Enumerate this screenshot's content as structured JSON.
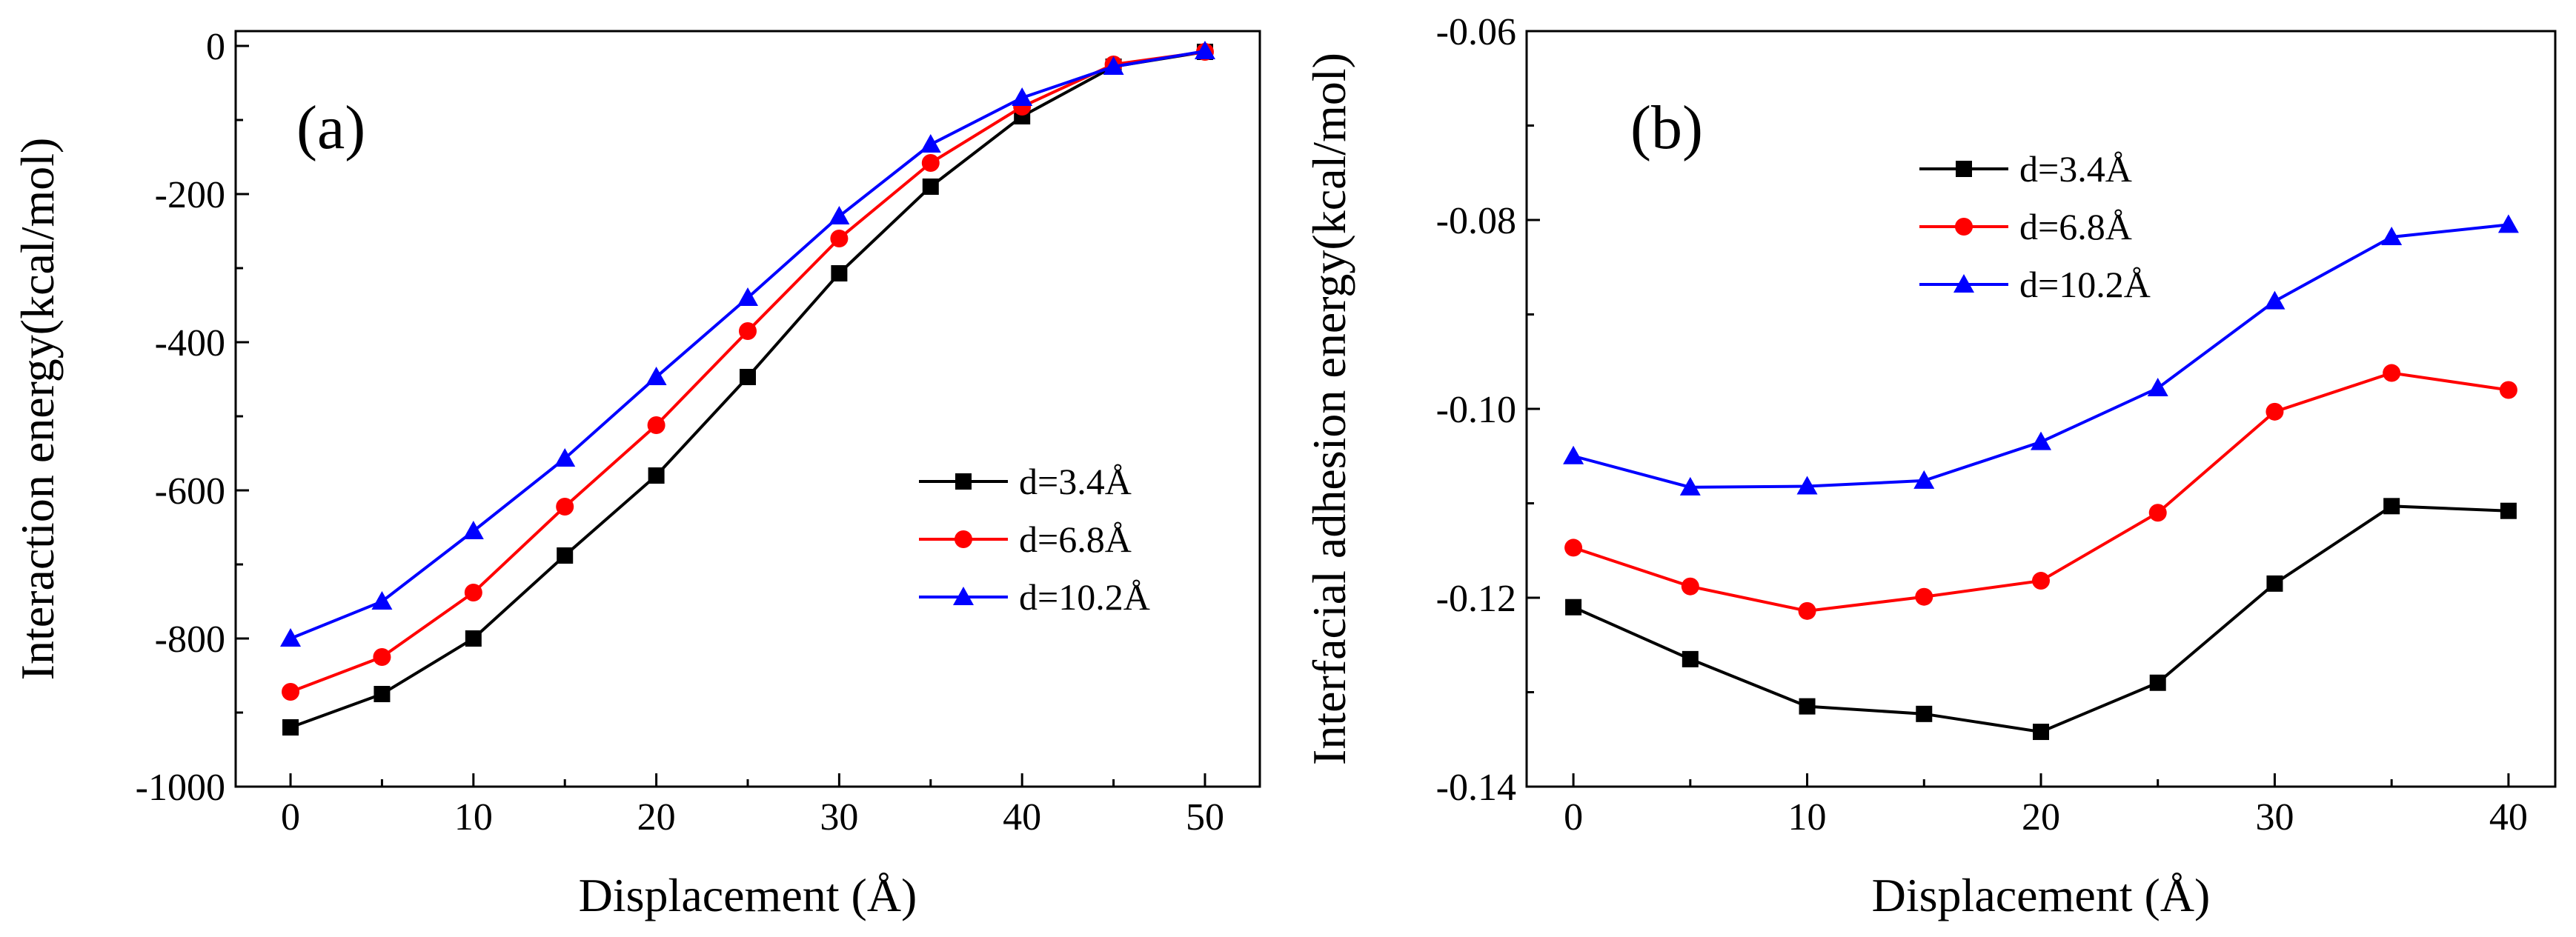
{
  "chart_data": [
    {
      "type": "line",
      "panel_label": "(a)",
      "xlabel": "Displacement (Å)",
      "ylabel": "Interaction energy(kcal/mol)",
      "xlim": [
        -3,
        53
      ],
      "ylim": [
        -1000,
        20
      ],
      "xticks": [
        0,
        10,
        20,
        30,
        40,
        50
      ],
      "xtick_labels": [
        "0",
        "10",
        "20",
        "30",
        "40",
        "50"
      ],
      "yticks": [
        -1000,
        -800,
        -600,
        -400,
        -200,
        0
      ],
      "ytick_labels": [
        "-1000",
        "-800",
        "-600",
        "-400",
        "-200",
        "0"
      ],
      "legend_position": "lower-right",
      "grid": false,
      "x": [
        0,
        5,
        10,
        15,
        20,
        25,
        30,
        35,
        40,
        45,
        50
      ],
      "series": [
        {
          "name": "d=3.4Å",
          "color": "#000000",
          "marker": "square",
          "values": [
            -920,
            -875,
            -800,
            -688,
            -580,
            -447,
            -307,
            -190,
            -95,
            -28,
            -8
          ]
        },
        {
          "name": "d=6.8Å",
          "color": "#ff0000",
          "marker": "circle",
          "values": [
            -872,
            -825,
            -738,
            -622,
            -512,
            -385,
            -260,
            -158,
            -82,
            -25,
            -8
          ]
        },
        {
          "name": "d=10.2Å",
          "color": "#0000ff",
          "marker": "triangle",
          "values": [
            -800,
            -750,
            -655,
            -557,
            -447,
            -340,
            -230,
            -133,
            -70,
            -28,
            -7
          ]
        }
      ]
    },
    {
      "type": "line",
      "panel_label": "(b)",
      "xlabel": "Displacement (Å)",
      "ylabel": "Interfacial adhesion energy(kcal/mol)",
      "xlim": [
        -2,
        42
      ],
      "ylim": [
        -0.14,
        -0.06
      ],
      "xticks": [
        0,
        10,
        20,
        30,
        40
      ],
      "xtick_labels": [
        "0",
        "10",
        "20",
        "30",
        "40"
      ],
      "yticks": [
        -0.14,
        -0.12,
        -0.1,
        -0.08,
        -0.06
      ],
      "ytick_labels": [
        "-0.14",
        "-0.12",
        "-0.10",
        "-0.08",
        "-0.06"
      ],
      "legend_position": "upper-left",
      "grid": false,
      "x": [
        0,
        5,
        10,
        15,
        20,
        25,
        30,
        35,
        40
      ],
      "series": [
        {
          "name": "d=3.4Å",
          "color": "#000000",
          "marker": "square",
          "values": [
            -0.121,
            -0.1265,
            -0.1315,
            -0.1323,
            -0.1342,
            -0.129,
            -0.1185,
            -0.1103,
            -0.1108
          ]
        },
        {
          "name": "d=6.8Å",
          "color": "#ff0000",
          "marker": "circle",
          "values": [
            -0.1147,
            -0.1188,
            -0.1214,
            -0.1199,
            -0.1182,
            -0.111,
            -0.1003,
            -0.0962,
            -0.098
          ]
        },
        {
          "name": "d=10.2Å",
          "color": "#0000ff",
          "marker": "triangle",
          "values": [
            -0.105,
            -0.1083,
            -0.1082,
            -0.1076,
            -0.1035,
            -0.0978,
            -0.0886,
            -0.0818,
            -0.0805
          ]
        }
      ]
    }
  ]
}
